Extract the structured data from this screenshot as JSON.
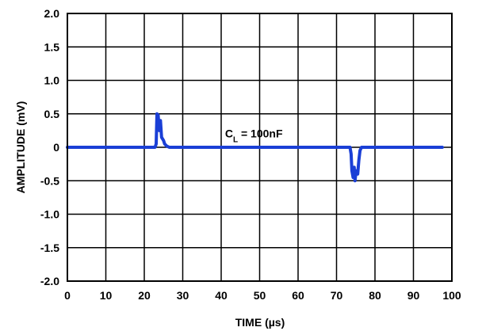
{
  "chart_data": {
    "type": "line",
    "xlabel": "TIME (µs)",
    "ylabel": "AMPLITUDE (mV)",
    "xlim": [
      0,
      100
    ],
    "ylim": [
      -2.0,
      2.0
    ],
    "grid": true,
    "x_ticks": [
      0,
      10,
      20,
      30,
      40,
      50,
      60,
      70,
      80,
      90,
      100
    ],
    "x_tick_labels": [
      "0",
      "10",
      "20",
      "30",
      "40",
      "50",
      "60",
      "70",
      "80",
      "90",
      "100"
    ],
    "y_ticks": [
      2.0,
      1.5,
      1.0,
      0.5,
      0,
      -0.5,
      -1.0,
      -1.5,
      -2.0
    ],
    "y_tick_labels": [
      "2.0",
      "1.5",
      "1.0",
      "0.5",
      "0",
      "-0.5",
      "-1.0",
      "-1.5",
      "-2.0"
    ],
    "annotation": {
      "prefix": "C",
      "subscript": "L",
      "suffix": " = 100nF",
      "x": 41,
      "y": 0.15
    },
    "series": [
      {
        "color": "#1a3fd6",
        "x": [
          0,
          22.8,
          23.1,
          23.3,
          23.6,
          23.9,
          24.2,
          24.5,
          25.0,
          25.3,
          25.8,
          26.5,
          73.5,
          73.8,
          74.0,
          74.3,
          74.6,
          74.8,
          75.1,
          75.5,
          75.8,
          76.1,
          76.5,
          97.5
        ],
        "y": [
          0,
          0,
          0.05,
          0.5,
          0.48,
          0.25,
          0.4,
          0.15,
          0.1,
          0.05,
          0.02,
          0,
          0,
          -0.1,
          -0.35,
          -0.45,
          -0.3,
          -0.5,
          -0.35,
          -0.4,
          -0.2,
          -0.05,
          0,
          0
        ]
      }
    ]
  }
}
